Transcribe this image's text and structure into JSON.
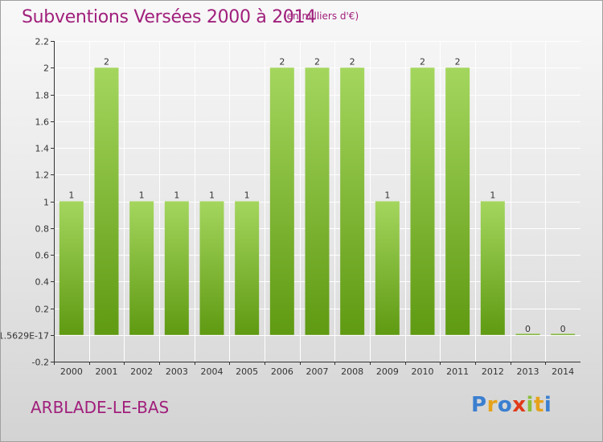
{
  "header": {
    "title": "Subventions Versées 2000 à 2014",
    "subtitle": "(en milliers d'€)"
  },
  "footer": {
    "commune": "ARBLADE-LE-BAS",
    "logo_text": "Proxiti",
    "logo_colors": [
      "#3a7fd0",
      "#e6a21a",
      "#3a7fd0",
      "#e03a1a",
      "#8ac03a",
      "#e6a21a",
      "#3a7fd0"
    ]
  },
  "colors": {
    "bar_top": "#a4d65e",
    "bar_bottom": "#5f9a12",
    "text": "#a0207c",
    "axis": "#333333",
    "grid": "#ffffff"
  },
  "chart_data": {
    "type": "bar",
    "categories": [
      "2000",
      "2001",
      "2002",
      "2003",
      "2004",
      "2005",
      "2006",
      "2007",
      "2008",
      "2009",
      "2010",
      "2011",
      "2012",
      "2013",
      "2014"
    ],
    "values": [
      1,
      2,
      1,
      1,
      1,
      1,
      2,
      2,
      2,
      1,
      2,
      2,
      1,
      0,
      0
    ],
    "data_labels": [
      "1",
      "2",
      "1",
      "1",
      "1",
      "1",
      "2",
      "2",
      "2",
      "1",
      "2",
      "2",
      "1",
      "0",
      "0"
    ],
    "y_ticks": [
      -0.2,
      0,
      0.2,
      0.4,
      0.6,
      0.8,
      1,
      1.2,
      1.4,
      1.6,
      1.8,
      2,
      2.2
    ],
    "y_tick_labels": [
      "-0.2",
      "1.5629E-17",
      "0.2",
      "0.4",
      "0.6",
      "0.8",
      "1",
      "1.2",
      "1.4",
      "1.6",
      "1.8",
      "2",
      "2.2"
    ],
    "ylim": [
      -0.2,
      2.2
    ],
    "grid": true,
    "legend": "none"
  }
}
